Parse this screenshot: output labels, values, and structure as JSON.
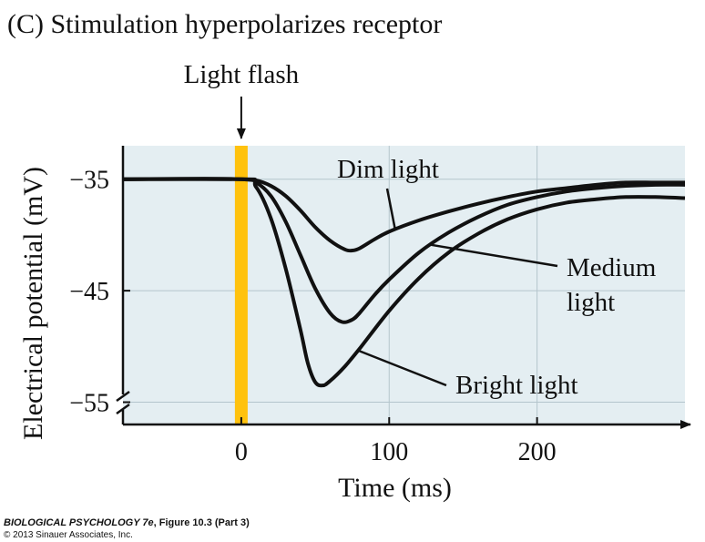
{
  "chart_data": {
    "type": "line",
    "title": "(C) Stimulation hyperpolarizes receptor",
    "xlabel": "Time (ms)",
    "ylabel": "Electrical potential (mV)",
    "xlim": [
      -80,
      300
    ],
    "ylim": [
      -57,
      -32
    ],
    "xticks": [
      0,
      100,
      200
    ],
    "yticks": [
      -35,
      -45,
      -55
    ],
    "ytick_labels": [
      "−35",
      "−45",
      "−55"
    ],
    "grid": true,
    "stimulus": {
      "label": "Light flash",
      "x": 0,
      "color": "#ffc20e"
    },
    "series": [
      {
        "name": "Dim light",
        "x": [
          -80,
          0,
          10,
          20,
          30,
          40,
          50,
          60,
          70,
          75,
          80,
          90,
          100,
          120,
          140,
          160,
          180,
          200,
          220,
          240,
          260,
          280,
          300
        ],
        "y": [
          -35,
          -35,
          -35.1,
          -35.6,
          -36.5,
          -37.8,
          -39.3,
          -40.5,
          -41.3,
          -41.4,
          -41.2,
          -40.4,
          -39.7,
          -38.7,
          -37.9,
          -37.2,
          -36.6,
          -36.1,
          -35.8,
          -35.5,
          -35.3,
          -35.3,
          -35.3
        ]
      },
      {
        "name": "Medium light",
        "x": [
          -80,
          0,
          10,
          20,
          30,
          40,
          50,
          60,
          68,
          75,
          80,
          90,
          100,
          120,
          140,
          160,
          180,
          200,
          220,
          240,
          260,
          280,
          300
        ],
        "y": [
          -35,
          -35,
          -35.3,
          -36.5,
          -38.8,
          -41.8,
          -44.8,
          -47,
          -47.8,
          -47.6,
          -47,
          -45.4,
          -44,
          -41.6,
          -39.8,
          -38.4,
          -37.3,
          -36.6,
          -36.1,
          -35.8,
          -35.6,
          -35.5,
          -35.5
        ]
      },
      {
        "name": "Bright light",
        "x": [
          -80,
          0,
          10,
          20,
          30,
          40,
          45,
          50,
          55,
          60,
          70,
          80,
          100,
          120,
          140,
          160,
          180,
          200,
          220,
          240,
          260,
          280,
          300
        ],
        "y": [
          -35,
          -35,
          -35.7,
          -38.5,
          -43,
          -48.5,
          -51.5,
          -53.2,
          -53.5,
          -53.1,
          -51.8,
          -50.2,
          -46.8,
          -43.9,
          -41.6,
          -39.9,
          -38.6,
          -37.7,
          -37.1,
          -36.8,
          -36.6,
          -36.6,
          -36.7
        ]
      }
    ],
    "annotations": [
      {
        "text": "Dim light",
        "series": 0
      },
      {
        "text": "Medium",
        "text2": "light",
        "series": 1
      },
      {
        "text": "Bright light",
        "series": 2
      }
    ],
    "colors": {
      "plot_background": "#e4eef2",
      "grid": "#b4c5cc",
      "line": "#111111",
      "stimulus": "#ffc20e"
    }
  },
  "caption": {
    "line1_italic": "BIOLOGICAL PSYCHOLOGY 7e",
    "line1_rest": ", Figure 10.3 (Part 3)",
    "line2": "© 2013 Sinauer Associates, Inc."
  }
}
